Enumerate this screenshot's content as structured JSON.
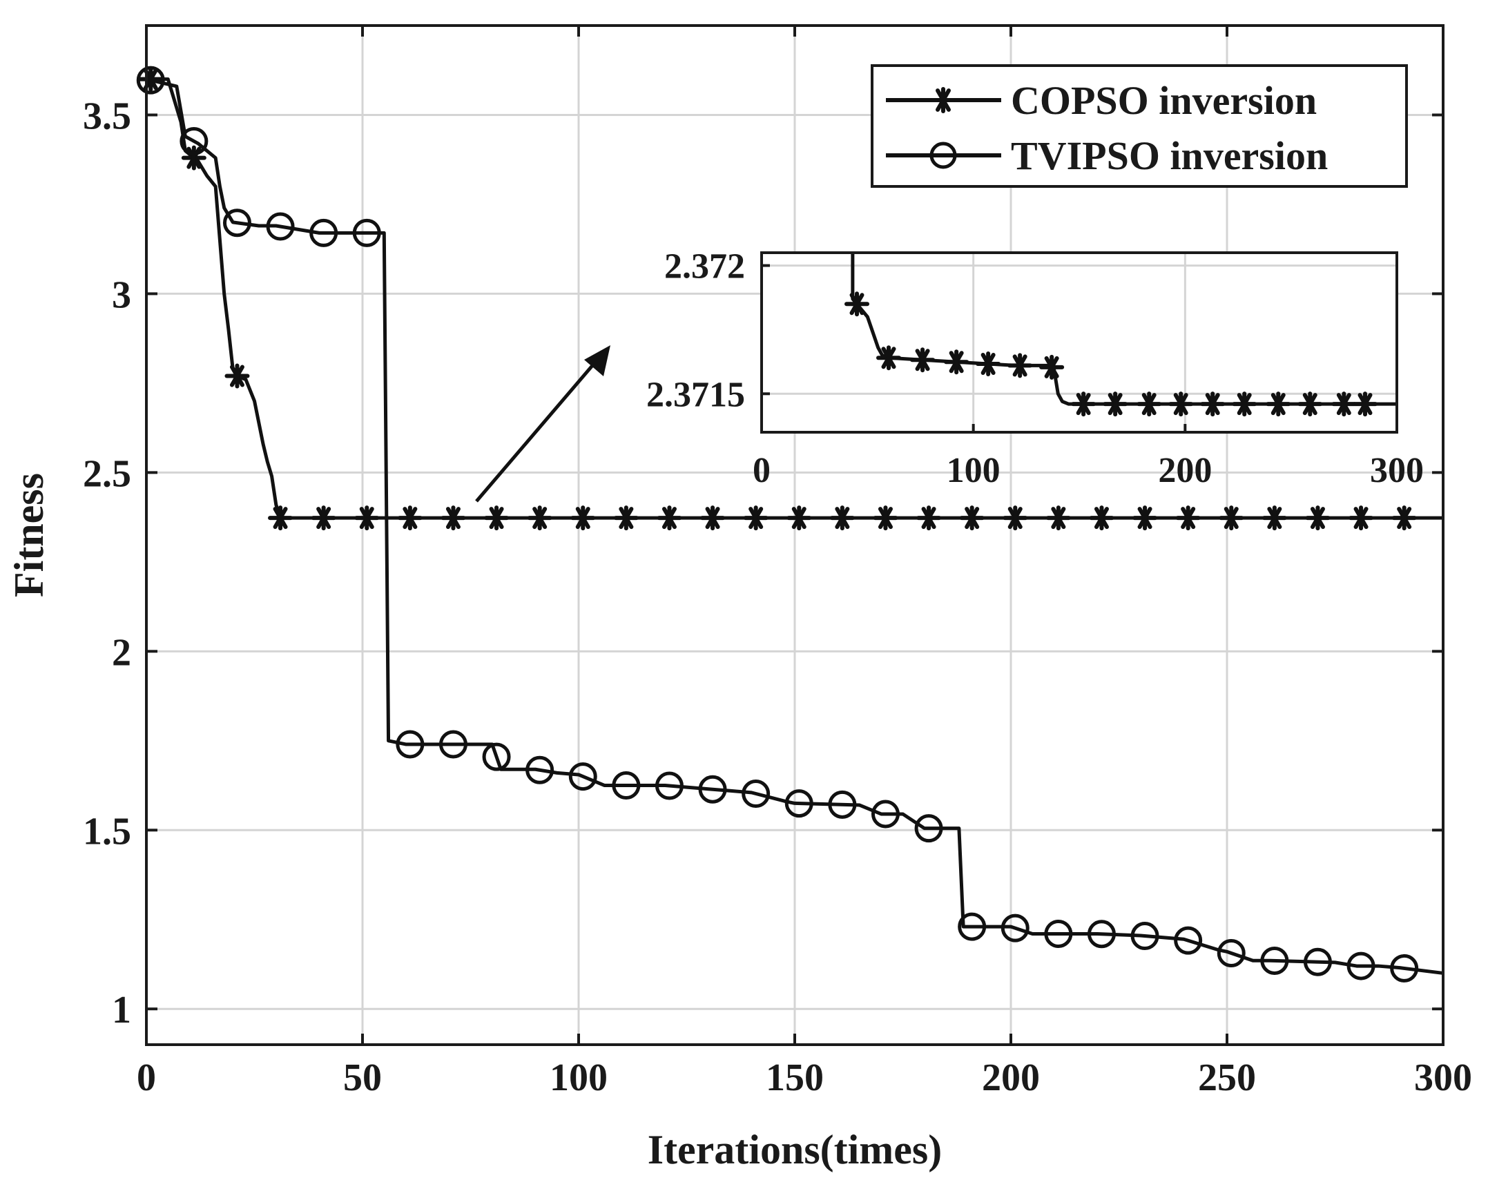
{
  "chart_data": {
    "type": "line",
    "xlabel": "Iterations(times)",
    "ylabel": "Fitness",
    "xlim": [
      0,
      300
    ],
    "ylim": [
      0.9,
      3.75
    ],
    "xticks": [
      0,
      50,
      100,
      150,
      200,
      250,
      300
    ],
    "yticks": [
      1,
      1.5,
      2,
      2.5,
      3,
      3.5
    ],
    "xtick_labels": [
      "0",
      "50",
      "100",
      "150",
      "200",
      "250",
      "300"
    ],
    "ytick_labels": [
      "1",
      "1.5",
      "2",
      "2.5",
      "3",
      "3.5"
    ],
    "grid": true,
    "legend_position": "top-right",
    "series": [
      {
        "name": "COPSO inversion",
        "marker": "asterisk",
        "x": [
          0,
          5,
          8,
          9,
          12,
          14,
          16,
          17,
          18,
          19,
          20,
          21,
          23,
          25,
          27,
          28,
          29,
          30,
          31,
          300
        ],
        "y": [
          3.6,
          3.6,
          3.48,
          3.4,
          3.37,
          3.33,
          3.3,
          3.15,
          3.0,
          2.9,
          2.79,
          2.77,
          2.76,
          2.7,
          2.58,
          2.53,
          2.49,
          2.41,
          2.373,
          2.373
        ],
        "marker_x": [
          1,
          11,
          21,
          31,
          41,
          51,
          61,
          71,
          81,
          91,
          101,
          111,
          121,
          131,
          141,
          151,
          161,
          171,
          181,
          191,
          201,
          211,
          221,
          231,
          241,
          251,
          261,
          271,
          281,
          291
        ]
      },
      {
        "name": "TVIPSO inversion",
        "marker": "circle",
        "x": [
          0,
          7,
          9,
          12,
          14,
          16,
          17,
          18,
          20,
          26,
          30,
          40,
          50,
          55,
          56,
          60,
          70,
          80,
          82,
          88,
          90,
          95,
          100,
          106,
          110,
          120,
          125,
          130,
          135,
          140,
          148,
          150,
          165,
          170,
          175,
          180,
          188,
          189,
          190,
          200,
          205,
          210,
          220,
          230,
          235,
          240,
          248,
          250,
          256,
          260,
          275,
          280,
          285,
          290,
          300
        ],
        "y": [
          3.6,
          3.58,
          3.44,
          3.42,
          3.4,
          3.38,
          3.3,
          3.24,
          3.2,
          3.19,
          3.19,
          3.17,
          3.17,
          3.17,
          1.75,
          1.74,
          1.74,
          1.74,
          1.67,
          1.67,
          1.67,
          1.66,
          1.655,
          1.625,
          1.625,
          1.625,
          1.62,
          1.615,
          1.61,
          1.605,
          1.58,
          1.575,
          1.57,
          1.545,
          1.545,
          1.505,
          1.505,
          1.23,
          1.23,
          1.23,
          1.21,
          1.21,
          1.21,
          1.205,
          1.2,
          1.195,
          1.165,
          1.16,
          1.135,
          1.135,
          1.13,
          1.12,
          1.12,
          1.115,
          1.1
        ],
        "marker_x": [
          1,
          11,
          21,
          31,
          41,
          51,
          61,
          71,
          81,
          91,
          101,
          111,
          121,
          131,
          141,
          151,
          161,
          171,
          181,
          191,
          201,
          211,
          221,
          231,
          241,
          251,
          261,
          271,
          281,
          291
        ]
      }
    ],
    "inset": {
      "xlim": [
        0,
        300
      ],
      "ylim": [
        2.37135,
        2.37205
      ],
      "xticks": [
        0,
        100,
        200,
        300
      ],
      "xtick_labels": [
        "0",
        "100",
        "200",
        "300"
      ],
      "yticks": [
        2.3715,
        2.372
      ],
      "ytick_labels": [
        "2.3715",
        "2.372"
      ],
      "x": [
        43,
        43,
        45,
        50,
        55,
        57,
        60,
        80,
        100,
        120,
        135,
        138,
        140,
        142,
        145,
        300
      ],
      "y": [
        2.37205,
        2.37187,
        2.37185,
        2.3718,
        2.37168,
        2.37165,
        2.37164,
        2.37163,
        2.37162,
        2.37161,
        2.37161,
        2.3716,
        2.3715,
        2.37147,
        2.37146,
        2.37146
      ],
      "marker_x": [
        45,
        60,
        76,
        92,
        107,
        122,
        137,
        152,
        167,
        183,
        198,
        213,
        228,
        244,
        259,
        275,
        285
      ],
      "annotation": "arrow pointing from main curve plateau to inset"
    }
  }
}
